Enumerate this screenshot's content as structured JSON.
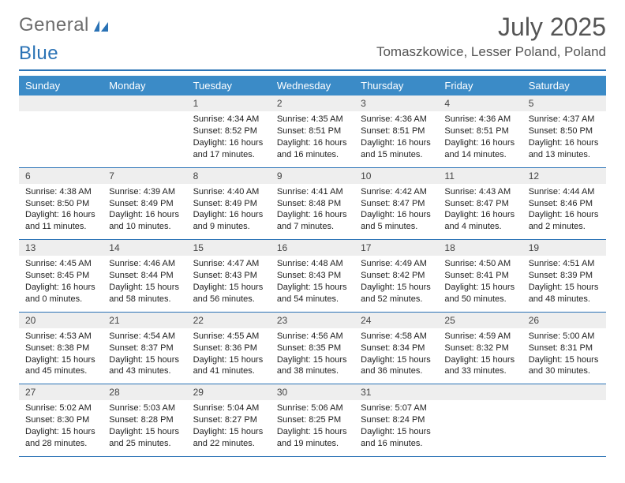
{
  "brand": {
    "word1": "General",
    "word2": "Blue"
  },
  "title": "July 2025",
  "location": "Tomaszkowice, Lesser Poland, Poland",
  "colors": {
    "header_bg": "#3b8bc7",
    "rule": "#2a72b5",
    "daynum_bg": "#eeeeee",
    "text": "#222222",
    "title_text": "#555555"
  },
  "day_headers": [
    "Sunday",
    "Monday",
    "Tuesday",
    "Wednesday",
    "Thursday",
    "Friday",
    "Saturday"
  ],
  "weeks": [
    [
      {
        "n": "",
        "sr": "",
        "ss": "",
        "dl": ""
      },
      {
        "n": "",
        "sr": "",
        "ss": "",
        "dl": ""
      },
      {
        "n": "1",
        "sr": "Sunrise: 4:34 AM",
        "ss": "Sunset: 8:52 PM",
        "dl": "Daylight: 16 hours and 17 minutes."
      },
      {
        "n": "2",
        "sr": "Sunrise: 4:35 AM",
        "ss": "Sunset: 8:51 PM",
        "dl": "Daylight: 16 hours and 16 minutes."
      },
      {
        "n": "3",
        "sr": "Sunrise: 4:36 AM",
        "ss": "Sunset: 8:51 PM",
        "dl": "Daylight: 16 hours and 15 minutes."
      },
      {
        "n": "4",
        "sr": "Sunrise: 4:36 AM",
        "ss": "Sunset: 8:51 PM",
        "dl": "Daylight: 16 hours and 14 minutes."
      },
      {
        "n": "5",
        "sr": "Sunrise: 4:37 AM",
        "ss": "Sunset: 8:50 PM",
        "dl": "Daylight: 16 hours and 13 minutes."
      }
    ],
    [
      {
        "n": "6",
        "sr": "Sunrise: 4:38 AM",
        "ss": "Sunset: 8:50 PM",
        "dl": "Daylight: 16 hours and 11 minutes."
      },
      {
        "n": "7",
        "sr": "Sunrise: 4:39 AM",
        "ss": "Sunset: 8:49 PM",
        "dl": "Daylight: 16 hours and 10 minutes."
      },
      {
        "n": "8",
        "sr": "Sunrise: 4:40 AM",
        "ss": "Sunset: 8:49 PM",
        "dl": "Daylight: 16 hours and 9 minutes."
      },
      {
        "n": "9",
        "sr": "Sunrise: 4:41 AM",
        "ss": "Sunset: 8:48 PM",
        "dl": "Daylight: 16 hours and 7 minutes."
      },
      {
        "n": "10",
        "sr": "Sunrise: 4:42 AM",
        "ss": "Sunset: 8:47 PM",
        "dl": "Daylight: 16 hours and 5 minutes."
      },
      {
        "n": "11",
        "sr": "Sunrise: 4:43 AM",
        "ss": "Sunset: 8:47 PM",
        "dl": "Daylight: 16 hours and 4 minutes."
      },
      {
        "n": "12",
        "sr": "Sunrise: 4:44 AM",
        "ss": "Sunset: 8:46 PM",
        "dl": "Daylight: 16 hours and 2 minutes."
      }
    ],
    [
      {
        "n": "13",
        "sr": "Sunrise: 4:45 AM",
        "ss": "Sunset: 8:45 PM",
        "dl": "Daylight: 16 hours and 0 minutes."
      },
      {
        "n": "14",
        "sr": "Sunrise: 4:46 AM",
        "ss": "Sunset: 8:44 PM",
        "dl": "Daylight: 15 hours and 58 minutes."
      },
      {
        "n": "15",
        "sr": "Sunrise: 4:47 AM",
        "ss": "Sunset: 8:43 PM",
        "dl": "Daylight: 15 hours and 56 minutes."
      },
      {
        "n": "16",
        "sr": "Sunrise: 4:48 AM",
        "ss": "Sunset: 8:43 PM",
        "dl": "Daylight: 15 hours and 54 minutes."
      },
      {
        "n": "17",
        "sr": "Sunrise: 4:49 AM",
        "ss": "Sunset: 8:42 PM",
        "dl": "Daylight: 15 hours and 52 minutes."
      },
      {
        "n": "18",
        "sr": "Sunrise: 4:50 AM",
        "ss": "Sunset: 8:41 PM",
        "dl": "Daylight: 15 hours and 50 minutes."
      },
      {
        "n": "19",
        "sr": "Sunrise: 4:51 AM",
        "ss": "Sunset: 8:39 PM",
        "dl": "Daylight: 15 hours and 48 minutes."
      }
    ],
    [
      {
        "n": "20",
        "sr": "Sunrise: 4:53 AM",
        "ss": "Sunset: 8:38 PM",
        "dl": "Daylight: 15 hours and 45 minutes."
      },
      {
        "n": "21",
        "sr": "Sunrise: 4:54 AM",
        "ss": "Sunset: 8:37 PM",
        "dl": "Daylight: 15 hours and 43 minutes."
      },
      {
        "n": "22",
        "sr": "Sunrise: 4:55 AM",
        "ss": "Sunset: 8:36 PM",
        "dl": "Daylight: 15 hours and 41 minutes."
      },
      {
        "n": "23",
        "sr": "Sunrise: 4:56 AM",
        "ss": "Sunset: 8:35 PM",
        "dl": "Daylight: 15 hours and 38 minutes."
      },
      {
        "n": "24",
        "sr": "Sunrise: 4:58 AM",
        "ss": "Sunset: 8:34 PM",
        "dl": "Daylight: 15 hours and 36 minutes."
      },
      {
        "n": "25",
        "sr": "Sunrise: 4:59 AM",
        "ss": "Sunset: 8:32 PM",
        "dl": "Daylight: 15 hours and 33 minutes."
      },
      {
        "n": "26",
        "sr": "Sunrise: 5:00 AM",
        "ss": "Sunset: 8:31 PM",
        "dl": "Daylight: 15 hours and 30 minutes."
      }
    ],
    [
      {
        "n": "27",
        "sr": "Sunrise: 5:02 AM",
        "ss": "Sunset: 8:30 PM",
        "dl": "Daylight: 15 hours and 28 minutes."
      },
      {
        "n": "28",
        "sr": "Sunrise: 5:03 AM",
        "ss": "Sunset: 8:28 PM",
        "dl": "Daylight: 15 hours and 25 minutes."
      },
      {
        "n": "29",
        "sr": "Sunrise: 5:04 AM",
        "ss": "Sunset: 8:27 PM",
        "dl": "Daylight: 15 hours and 22 minutes."
      },
      {
        "n": "30",
        "sr": "Sunrise: 5:06 AM",
        "ss": "Sunset: 8:25 PM",
        "dl": "Daylight: 15 hours and 19 minutes."
      },
      {
        "n": "31",
        "sr": "Sunrise: 5:07 AM",
        "ss": "Sunset: 8:24 PM",
        "dl": "Daylight: 15 hours and 16 minutes."
      },
      {
        "n": "",
        "sr": "",
        "ss": "",
        "dl": ""
      },
      {
        "n": "",
        "sr": "",
        "ss": "",
        "dl": ""
      }
    ]
  ]
}
